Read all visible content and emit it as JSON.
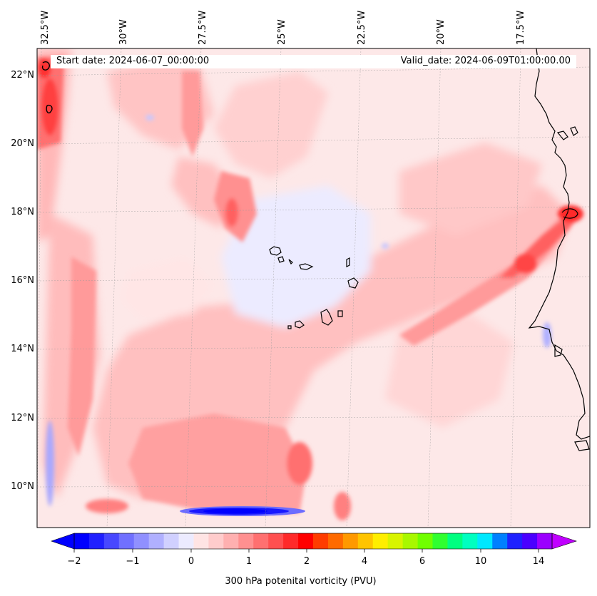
{
  "header": {
    "start_date": "Start date: 2024-06-07_00:00:00",
    "valid_date": "Valid_date: 2024-06-09T01:00:00.00"
  },
  "map": {
    "longitude_labels": [
      "32.5°W",
      "30°W",
      "27.5°W",
      "25°W",
      "22.5°W",
      "20°W",
      "17.5°W"
    ],
    "latitude_labels": [
      "22°N",
      "20°N",
      "18°N",
      "16°N",
      "14°N",
      "12°N",
      "10°N"
    ],
    "features": [
      "coastline-west-africa",
      "cape-verde-islands"
    ],
    "field": "300 hPa potential vorticity"
  },
  "colorbar": {
    "label": "300 hPa potenital vorticity (PVU)",
    "ticks": [
      "−2",
      "−1",
      "0",
      "1",
      "2",
      "4",
      "6",
      "10",
      "14"
    ],
    "colors": [
      "#0000ff",
      "#2020ff",
      "#4848ff",
      "#7070ff",
      "#9090ff",
      "#b0b0ff",
      "#d0d0ff",
      "#ecebff",
      "#ffe4e4",
      "#ffcccc",
      "#ffb0b0",
      "#ff9090",
      "#ff7070",
      "#ff5050",
      "#ff2a2a",
      "#ff0000",
      "#ff3c00",
      "#ff6a00",
      "#ff9900",
      "#ffc400",
      "#ffee00",
      "#d8f400",
      "#a8f800",
      "#70ff00",
      "#30ff30",
      "#00ff80",
      "#00ffc0",
      "#00e8ff",
      "#0080ff",
      "#1e22ff",
      "#4a00ff",
      "#9b00ff"
    ],
    "extend_min_color": "#0000ff",
    "extend_max_color": "#c000ff"
  }
}
